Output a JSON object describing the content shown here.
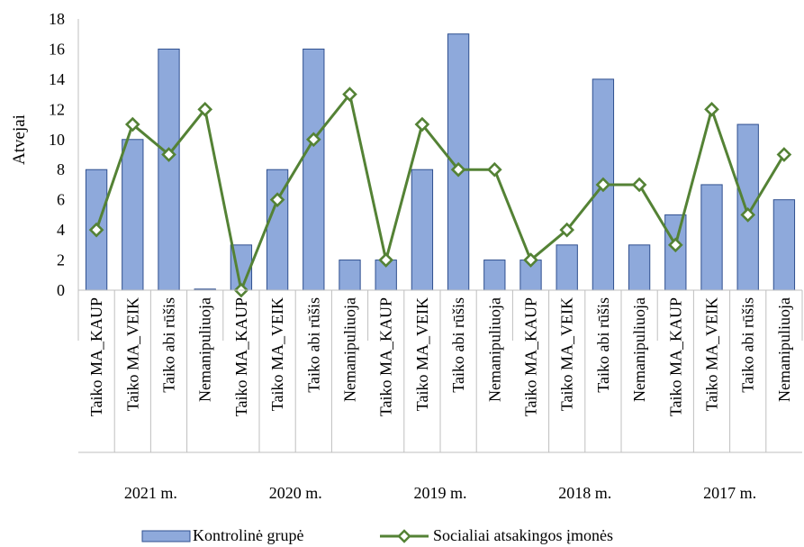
{
  "chart_data": {
    "type": "bar",
    "ylabel": "Atvejai",
    "ylim": [
      0,
      18
    ],
    "yticks": [
      0,
      2,
      4,
      6,
      8,
      10,
      12,
      14,
      16,
      18
    ],
    "groups": [
      {
        "label": "2021 m.",
        "categories": [
          "Taiko MA_KAUP",
          "Taiko MA_VEIK",
          "Taiko abi rūšis",
          "Nemanipuliuoja"
        ]
      },
      {
        "label": "2020 m.",
        "categories": [
          "Taiko MA_KAUP",
          "Taiko MA_VEIK",
          "Taiko abi rūšis",
          "Nemanipuliuoja"
        ]
      },
      {
        "label": "2019 m.",
        "categories": [
          "Taiko MA_KAUP",
          "Taiko MA_VEIK",
          "Taiko abi rūšis",
          "Nemanipuliuoja"
        ]
      },
      {
        "label": "2018 m.",
        "categories": [
          "Taiko MA_KAUP",
          "Taiko MA_VEIK",
          "Taiko abi rūšis",
          "Nemanipuliuoja"
        ]
      },
      {
        "label": "2017 m.",
        "categories": [
          "Taiko MA_KAUP",
          "Taiko MA_VEIK",
          "Taiko abi rūšis",
          "Nemanipuliuoja"
        ]
      }
    ],
    "series": [
      {
        "name": "Kontrolinė grupė",
        "kind": "bar",
        "color": "#8EA9DB",
        "values": [
          8,
          10,
          16,
          0,
          3,
          8,
          16,
          2,
          2,
          8,
          17,
          2,
          2,
          3,
          14,
          3,
          5,
          7,
          11,
          6
        ]
      },
      {
        "name": "Socialiai atsakingos įmonės",
        "kind": "line",
        "color": "#548235",
        "marker": "diamond",
        "values": [
          4,
          11,
          9,
          12,
          0,
          6,
          10,
          13,
          2,
          11,
          8,
          8,
          2,
          4,
          7,
          7,
          3,
          12,
          5,
          9
        ]
      }
    ],
    "legend_position": "bottom",
    "grid": false
  }
}
